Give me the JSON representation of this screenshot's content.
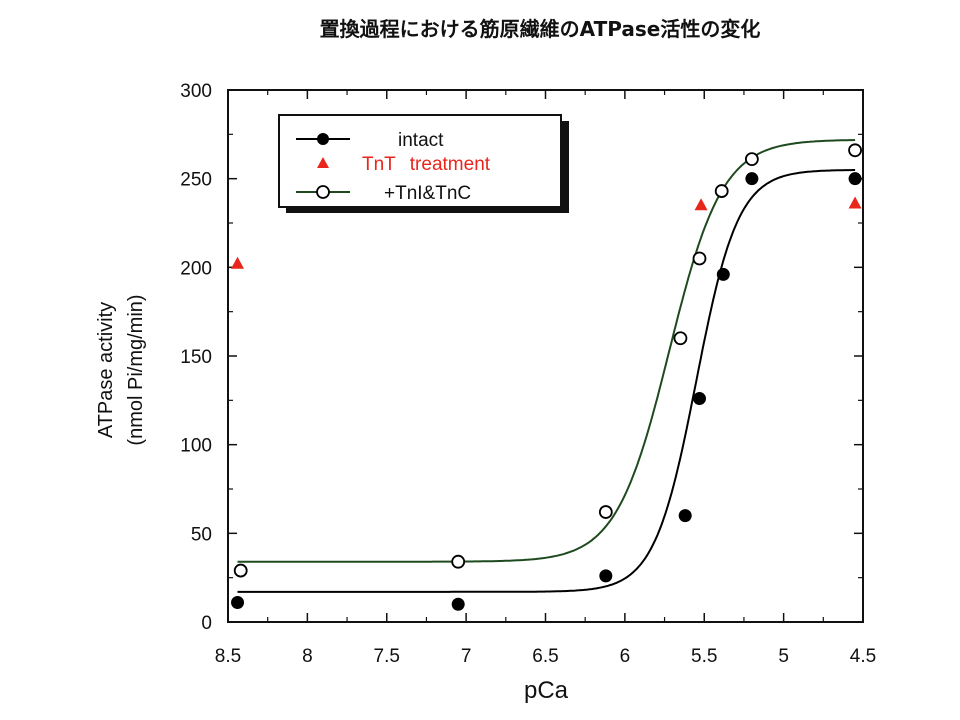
{
  "chart_data": {
    "type": "scatter",
    "title": "置換過程における筋原繊維のATPase活性の変化",
    "xlabel": "pCa",
    "ylabel": [
      "ATPase activity",
      "(nmol Pi/mg/min)"
    ],
    "xlim": [
      8.5,
      4.5
    ],
    "x_reversed": true,
    "ylim": [
      0,
      300
    ],
    "xticks": [
      "8.5",
      "8",
      "7.5",
      "7",
      "6.5",
      "6",
      "5.5",
      "5",
      "4.5"
    ],
    "yticks": [
      "0",
      "50",
      "100",
      "150",
      "200",
      "250",
      "300"
    ],
    "grid": false,
    "legend_position": "top-left",
    "colors": {
      "intact": "#000000",
      "tnt": "#e8261c",
      "tnitnc": "#000000",
      "fit_tnitnc": "#1f4a1f",
      "fit_intact": "#000000"
    },
    "series": [
      {
        "name": "intact",
        "marker": "filled-circle",
        "fit": {
          "bottom": 17,
          "top": 255,
          "pCa50": 5.55,
          "hill": 3.3
        },
        "points": [
          {
            "x": 8.44,
            "y": 11
          },
          {
            "x": 7.05,
            "y": 10
          },
          {
            "x": 6.12,
            "y": 26
          },
          {
            "x": 5.62,
            "y": 60
          },
          {
            "x": 5.53,
            "y": 126
          },
          {
            "x": 5.38,
            "y": 196
          },
          {
            "x": 5.2,
            "y": 250
          },
          {
            "x": 4.55,
            "y": 250
          }
        ]
      },
      {
        "name": "TnT treatment",
        "marker": "filled-triangle",
        "points": [
          {
            "x": 8.44,
            "y": 202
          },
          {
            "x": 5.52,
            "y": 235
          },
          {
            "x": 4.55,
            "y": 236
          }
        ]
      },
      {
        "name": "+TnI&TnC",
        "marker": "open-circle",
        "fit": {
          "bottom": 34,
          "top": 272,
          "pCa50": 5.72,
          "hill": 2.6
        },
        "points": [
          {
            "x": 8.42,
            "y": 29
          },
          {
            "x": 7.05,
            "y": 34
          },
          {
            "x": 6.12,
            "y": 62
          },
          {
            "x": 5.65,
            "y": 160
          },
          {
            "x": 5.53,
            "y": 205
          },
          {
            "x": 5.39,
            "y": 243
          },
          {
            "x": 5.2,
            "y": 261
          },
          {
            "x": 4.55,
            "y": 266
          }
        ]
      }
    ]
  }
}
